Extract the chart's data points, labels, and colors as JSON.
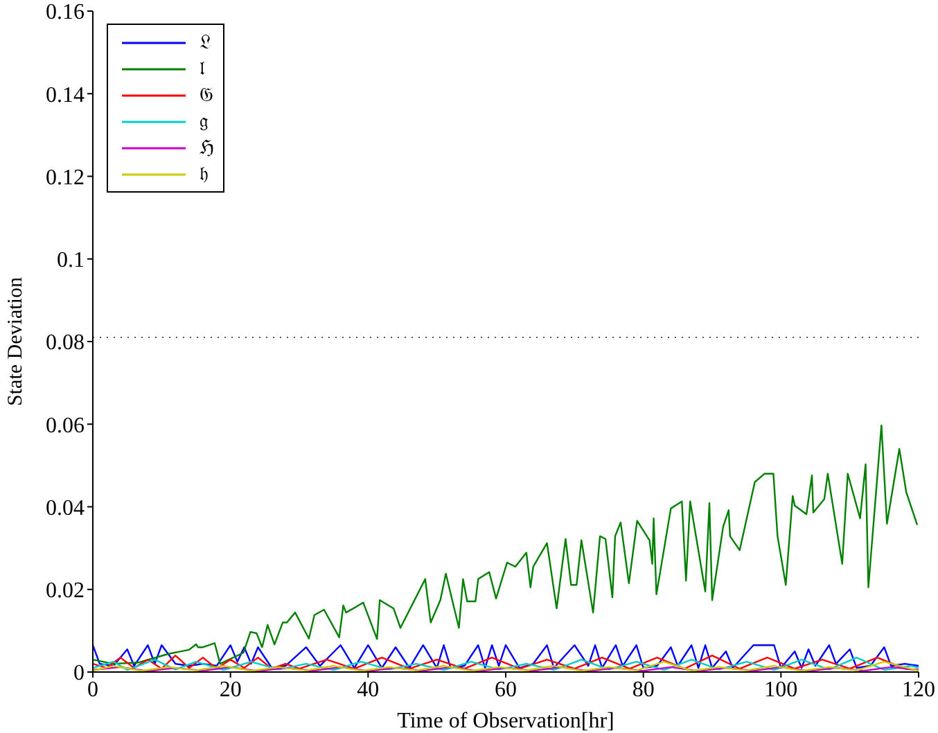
{
  "chart_data": {
    "type": "line",
    "xlabel": "Time of Observation[hr]",
    "ylabel": "State Deviation",
    "xlim": [
      0,
      120
    ],
    "xticks": [
      0,
      20,
      40,
      60,
      80,
      100,
      120
    ],
    "ylim": [
      0,
      0.16
    ],
    "yticks": [
      0,
      0.02,
      0.04,
      0.06,
      0.08,
      0.1,
      0.12,
      0.14,
      0.16
    ],
    "legend": "top left",
    "grid": false,
    "marker": "none",
    "line_style": "solid",
    "ref_lines": [
      {
        "axis": "y",
        "value": 0.081,
        "line_style": "dotted",
        "color": "#555555"
      }
    ],
    "series": [
      {
        "name": "𝔏",
        "color": "#0000ff",
        "x": [
          0,
          1,
          3,
          5,
          6,
          8,
          9,
          10,
          12,
          14,
          16,
          18,
          20,
          21,
          22,
          23,
          24,
          26,
          28,
          31,
          33,
          36,
          38,
          40,
          42,
          44,
          46,
          48,
          50,
          51,
          52,
          54,
          56,
          57,
          58,
          59,
          60,
          62,
          64,
          66,
          67,
          70,
          72,
          73,
          74,
          76,
          77,
          79,
          80,
          82,
          84,
          85,
          87,
          88,
          89,
          90,
          92,
          93,
          96,
          99,
          100,
          102,
          103,
          104,
          105,
          107,
          108,
          110,
          111,
          113,
          115,
          116,
          118,
          120
        ],
        "values": [
          0.0065,
          0.002,
          0.0015,
          0.0055,
          0.0015,
          0.0065,
          0.002,
          0.0065,
          0.002,
          0.0015,
          0.002,
          0.0015,
          0.0065,
          0.0025,
          0.006,
          0.002,
          0.006,
          0.001,
          0.0015,
          0.006,
          0.0015,
          0.0065,
          0.001,
          0.0065,
          0.001,
          0.006,
          0.001,
          0.0065,
          0.001,
          0.0065,
          0.001,
          0.0015,
          0.0065,
          0.001,
          0.0065,
          0.0015,
          0.0065,
          0.001,
          0.002,
          0.0065,
          0.001,
          0.0065,
          0.0015,
          0.0065,
          0.001,
          0.0065,
          0.0015,
          0.0065,
          0.001,
          0.0015,
          0.006,
          0.0015,
          0.0065,
          0.001,
          0.0065,
          0.001,
          0.005,
          0.001,
          0.0065,
          0.0065,
          0.001,
          0.005,
          0.001,
          0.0055,
          0.0015,
          0.0065,
          0.002,
          0.0055,
          0.001,
          0.0015,
          0.006,
          0.0015,
          0.002,
          0.0015
        ]
      },
      {
        "name": "𝔩",
        "color": "#008000",
        "x": [
          0,
          3,
          6.6,
          11,
          14,
          15,
          15.3,
          16,
          17.7,
          18.5,
          21.9,
          22.9,
          23.8,
          24.6,
          25.4,
          26.4,
          27.6,
          28.2,
          29.4,
          31.4,
          32.2,
          33.6,
          35.8,
          36.4,
          36.8,
          39.3,
          41.3,
          41.7,
          43.7,
          44.7,
          48.3,
          49.1,
          50.5,
          51.3,
          53.2,
          53.8,
          54.4,
          55.6,
          56,
          57.6,
          58.6,
          60.2,
          61.4,
          63,
          63.6,
          64,
          66,
          67.4,
          68.7,
          69.5,
          70.3,
          71,
          72.7,
          73.7,
          74.5,
          75.5,
          75.9,
          76.7,
          77.9,
          79.1,
          80.9,
          81.3,
          81.5,
          81.9,
          84,
          85.6,
          86.2,
          86.8,
          89,
          89.6,
          90,
          91.6,
          92.4,
          92.6,
          94,
          96.2,
          97.6,
          98.9,
          99.5,
          100.7,
          101.7,
          102,
          103.7,
          104.5,
          104.7,
          106.3,
          106.8,
          108.9,
          109.7,
          111.5,
          112.3,
          112.7,
          114.6,
          115.4,
          117.2,
          118.2,
          119.8
        ],
        "values": [
          0.003,
          0.002,
          0.0023,
          0.0044,
          0.0054,
          0.0067,
          0.006,
          0.006,
          0.007,
          0.002,
          0.0047,
          0.0097,
          0.0094,
          0.006,
          0.0114,
          0.0067,
          0.012,
          0.012,
          0.0144,
          0.0081,
          0.0138,
          0.0151,
          0.0084,
          0.0161,
          0.0144,
          0.0168,
          0.008,
          0.0174,
          0.0154,
          0.0107,
          0.0225,
          0.012,
          0.0174,
          0.0238,
          0.0107,
          0.0225,
          0.0171,
          0.0171,
          0.0225,
          0.0242,
          0.0178,
          0.0265,
          0.0255,
          0.0289,
          0.0205,
          0.0255,
          0.0312,
          0.0154,
          0.0322,
          0.0211,
          0.0211,
          0.0319,
          0.0144,
          0.0329,
          0.0322,
          0.0181,
          0.0329,
          0.0362,
          0.0215,
          0.0366,
          0.0319,
          0.0262,
          0.0372,
          0.0188,
          0.0396,
          0.0413,
          0.0221,
          0.0413,
          0.0195,
          0.0409,
          0.0174,
          0.0352,
          0.0392,
          0.0329,
          0.0295,
          0.046,
          0.048,
          0.048,
          0.0329,
          0.0211,
          0.0426,
          0.0403,
          0.0382,
          0.0476,
          0.0386,
          0.0419,
          0.048,
          0.0262,
          0.048,
          0.0372,
          0.0503,
          0.0205,
          0.0597,
          0.0359,
          0.054,
          0.0436,
          0.0356
        ]
      },
      {
        "name": "𝔊",
        "color": "#ff0000",
        "x": [
          0,
          2,
          4,
          6,
          8,
          10,
          12,
          14,
          16,
          18,
          20,
          22,
          24,
          26,
          28,
          30,
          34,
          38,
          42,
          46,
          50,
          54,
          58,
          62,
          66,
          70,
          74,
          78,
          82,
          86,
          90,
          94,
          98,
          102,
          106,
          110,
          114,
          118,
          120
        ],
        "values": [
          0.002,
          0.001,
          0.0035,
          0.001,
          0.003,
          0.0008,
          0.004,
          0.001,
          0.0035,
          0.0008,
          0.003,
          0.001,
          0.0035,
          0.0008,
          0.002,
          0.0008,
          0.003,
          0.0008,
          0.0035,
          0.0008,
          0.003,
          0.0008,
          0.0035,
          0.0008,
          0.003,
          0.0008,
          0.0035,
          0.0008,
          0.0035,
          0.0008,
          0.004,
          0.0008,
          0.0035,
          0.0008,
          0.003,
          0.0008,
          0.0035,
          0.0008,
          0.0005
        ]
      },
      {
        "name": "𝔤",
        "color": "#00cccc",
        "x": [
          0,
          3,
          5,
          9,
          12,
          15,
          19,
          23,
          27,
          31,
          35,
          39,
          43,
          47,
          51,
          55,
          59,
          63,
          67,
          71,
          75,
          79,
          83,
          87,
          91,
          95,
          99,
          103,
          107,
          111,
          115,
          119,
          120
        ],
        "values": [
          0.001,
          0.0025,
          0.0005,
          0.003,
          0.0006,
          0.0025,
          0.0005,
          0.0025,
          0.0006,
          0.002,
          0.0005,
          0.0025,
          0.0006,
          0.002,
          0.0005,
          0.0025,
          0.0006,
          0.002,
          0.0005,
          0.003,
          0.0006,
          0.0025,
          0.0005,
          0.003,
          0.0006,
          0.0025,
          0.0005,
          0.003,
          0.0006,
          0.0035,
          0.0005,
          0.0015,
          0.001
        ]
      },
      {
        "name": "ℌ",
        "color": "#cc00cc",
        "x": [
          0,
          4,
          8,
          12,
          16,
          20,
          24,
          28,
          32,
          36,
          40,
          44,
          48,
          52,
          56,
          60,
          64,
          68,
          72,
          76,
          80,
          84,
          88,
          92,
          96,
          100,
          104,
          108,
          112,
          116,
          120
        ],
        "values": [
          0.0005,
          0.0012,
          0.0002,
          0.001,
          0.0003,
          0.0012,
          0.0002,
          0.001,
          0.0003,
          0.0012,
          0.0002,
          0.001,
          0.0003,
          0.0012,
          0.0002,
          0.001,
          0.0003,
          0.0012,
          0.0002,
          0.001,
          0.0003,
          0.0012,
          0.0002,
          0.001,
          0.0003,
          0.0012,
          0.0002,
          0.001,
          0.0003,
          0.0012,
          0.0005
        ]
      },
      {
        "name": "𝔥",
        "color": "#cccc00",
        "x": [
          0,
          3,
          7,
          11,
          15,
          19,
          23,
          27,
          31,
          35,
          39,
          43,
          47,
          51,
          55,
          59,
          63,
          67,
          71,
          75,
          79,
          83,
          87,
          91,
          95,
          99,
          103,
          107,
          111,
          115,
          120
        ],
        "values": [
          0.0003,
          0.0015,
          0.0003,
          0.0012,
          0.0004,
          0.0015,
          0.0003,
          0.0012,
          0.0004,
          0.0015,
          0.0003,
          0.0012,
          0.0004,
          0.0015,
          0.0003,
          0.0012,
          0.0004,
          0.0015,
          0.0003,
          0.0012,
          0.0004,
          0.0025,
          0.0003,
          0.0012,
          0.0004,
          0.0015,
          0.0003,
          0.0012,
          0.0004,
          0.0025,
          0.0003
        ]
      }
    ]
  }
}
